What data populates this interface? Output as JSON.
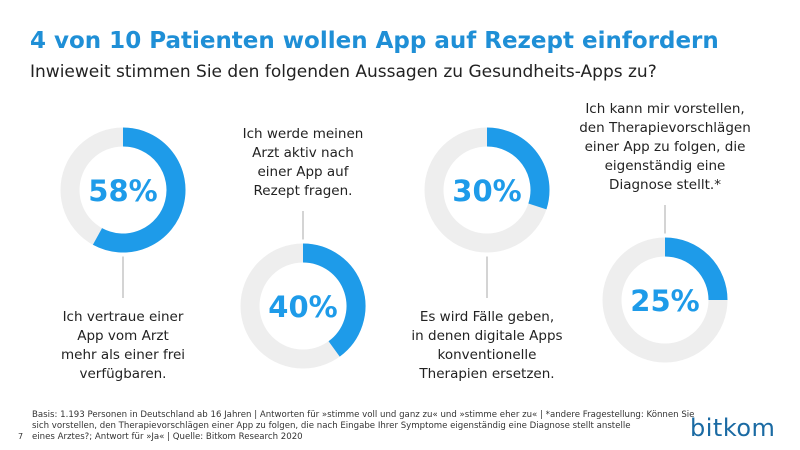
{
  "title": "4 von 10 Patienten wollen App auf Rezept einfordern",
  "subtitle": "Inwieweit stimmen Sie den folgenden Aussagen zu Gesundheits-Apps zu?",
  "chart_data": [
    {
      "type": "donut",
      "values": [
        58
      ],
      "value_labels": [
        "58%"
      ],
      "color": "#1e9be9",
      "label": [
        "Ich vertraue einer",
        "App vom Arzt",
        "mehr als einer frei",
        "verfügbaren."
      ]
    },
    {
      "type": "donut",
      "values": [
        40
      ],
      "value_labels": [
        "40%"
      ],
      "color": "#1e9be9",
      "label": [
        "Ich werde meinen",
        "Arzt aktiv nach",
        "einer App auf",
        "Rezept fragen."
      ]
    },
    {
      "type": "donut",
      "values": [
        30
      ],
      "value_labels": [
        "30%"
      ],
      "color": "#1e9be9",
      "label": [
        "Es wird Fälle geben,",
        "in denen digitale Apps",
        "konventionelle",
        "Therapien ersetzen."
      ]
    },
    {
      "type": "donut",
      "values": [
        25
      ],
      "value_labels": [
        "25%"
      ],
      "color": "#1e9be9",
      "label": [
        "Ich kann mir vorstellen,",
        "den Therapievorschlägen",
        "einer App zu folgen, die",
        "eigenständig eine",
        "Diagnose stellt.*"
      ]
    }
  ],
  "footnote": [
    "Basis: 1.193 Personen in Deutschland ab 16 Jahren | Antworten für »stimme voll und ganz zu« und »stimme eher zu« | *andere Fragestellung: Können Sie",
    "sich vorstellen, den Therapievorschlägen einer App zu folgen, die nach Eingabe Ihrer Symptome eigenständig eine Diagnose stellt anstelle",
    "eines Arztes?; Antwort für »Ja«   | Quelle: Bitkom Research 2020"
  ],
  "page_number": "7",
  "logo": "bitkom"
}
